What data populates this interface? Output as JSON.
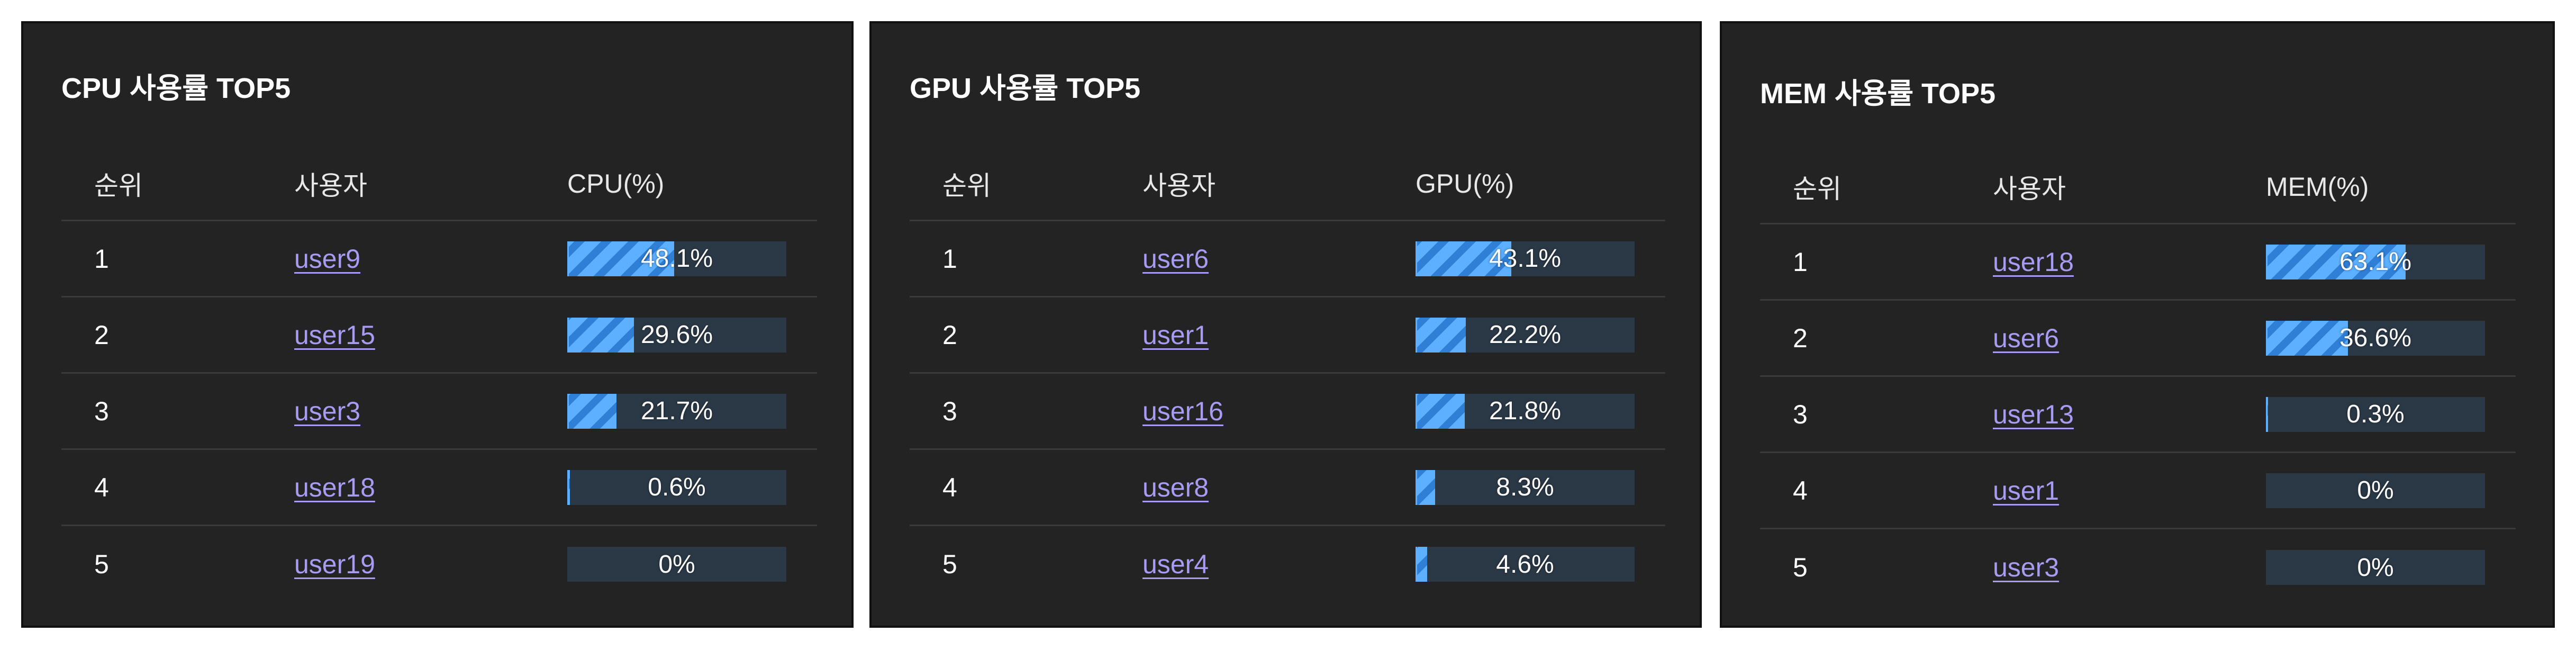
{
  "panels": [
    {
      "title": "CPU 사용률 TOP5",
      "columns": {
        "rank": "순위",
        "user": "사용자",
        "value": "CPU(%)"
      },
      "rows": [
        {
          "rank": "1",
          "user": "user9",
          "value_label": "48.1%",
          "value": 48.1
        },
        {
          "rank": "2",
          "user": "user15",
          "value_label": "29.6%",
          "value": 29.6
        },
        {
          "rank": "3",
          "user": "user3",
          "value_label": "21.7%",
          "value": 21.7
        },
        {
          "rank": "4",
          "user": "user18",
          "value_label": "0.6%",
          "value": 0.6
        },
        {
          "rank": "5",
          "user": "user19",
          "value_label": "0%",
          "value": 0
        }
      ]
    },
    {
      "title": "GPU 사용률 TOP5",
      "columns": {
        "rank": "순위",
        "user": "사용자",
        "value": "GPU(%)"
      },
      "rows": [
        {
          "rank": "1",
          "user": "user6",
          "value_label": "43.1%",
          "value": 43.1
        },
        {
          "rank": "2",
          "user": "user1",
          "value_label": "22.2%",
          "value": 22.2
        },
        {
          "rank": "3",
          "user": "user16",
          "value_label": "21.8%",
          "value": 21.8
        },
        {
          "rank": "4",
          "user": "user8",
          "value_label": "8.3%",
          "value": 8.3
        },
        {
          "rank": "5",
          "user": "user4",
          "value_label": "4.6%",
          "value": 4.6
        }
      ]
    },
    {
      "title": "MEM 사용률 TOP5",
      "columns": {
        "rank": "순위",
        "user": "사용자",
        "value": "MEM(%)"
      },
      "rows": [
        {
          "rank": "1",
          "user": "user18",
          "value_label": "63.1%",
          "value": 63.1
        },
        {
          "rank": "2",
          "user": "user6",
          "value_label": "36.6%",
          "value": 36.6
        },
        {
          "rank": "3",
          "user": "user13",
          "value_label": "0.3%",
          "value": 0.3
        },
        {
          "rank": "4",
          "user": "user1",
          "value_label": "0%",
          "value": 0
        },
        {
          "rank": "5",
          "user": "user3",
          "value_label": "0%",
          "value": 0
        }
      ]
    }
  ],
  "colors": {
    "panel_bg": "#232323",
    "link": "#a79cf2",
    "bar_track": "#2b3947",
    "bar_fill": "#5cb0ff"
  }
}
